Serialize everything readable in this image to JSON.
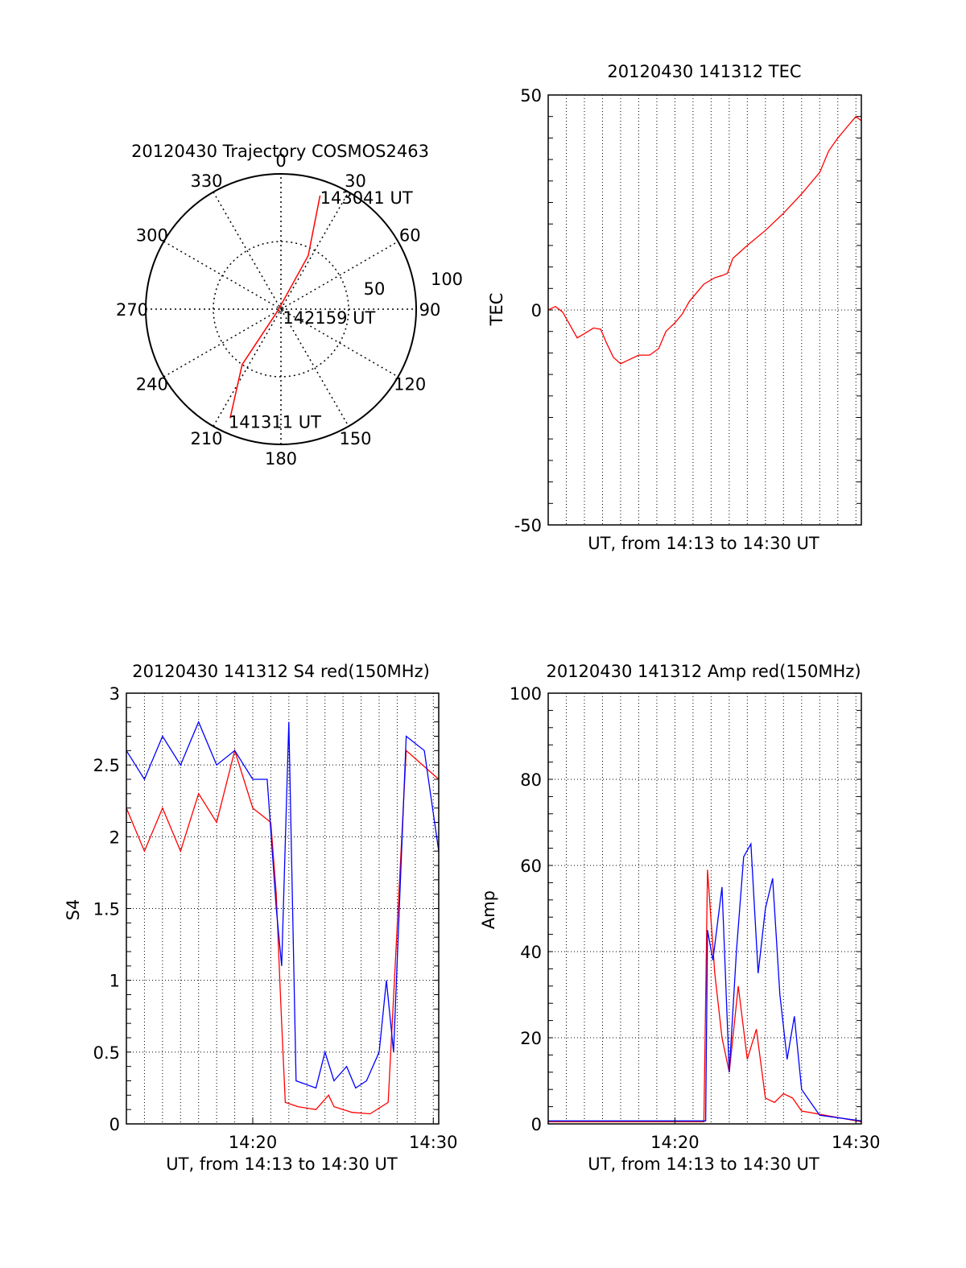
{
  "chart_data": [
    {
      "type": "polar",
      "title": "20120430 Trajectory COSMOS2463",
      "azimuth_ticks": [
        "0",
        "30",
        "60",
        "90",
        "120",
        "150",
        "180",
        "210",
        "240",
        "270",
        "300",
        "330"
      ],
      "radial_ticks": [
        "50",
        "100"
      ],
      "grid": true,
      "series": [
        {
          "color": "#ff0000",
          "points": [
            {
              "az": 205,
              "elev": 10
            },
            {
              "az": 215,
              "elev": 45
            },
            {
              "az": 250,
              "elev": 88
            },
            {
              "az": 27,
              "elev": 50
            },
            {
              "az": 19,
              "elev": 10
            }
          ]
        }
      ],
      "annotations": [
        {
          "text": "143041 UT",
          "az": 19,
          "elev": 10
        },
        {
          "text": "142159 UT",
          "az": 90,
          "elev": 85
        },
        {
          "text": "141311 UT",
          "az": 205,
          "elev": 10
        }
      ]
    },
    {
      "type": "line",
      "title": "20120430 141312 TEC",
      "xlabel": "UT, from 14:13 to 14:30 UT",
      "ylabel": "TEC",
      "xlim": [
        0,
        17.3
      ],
      "ylim": [
        -50,
        50
      ],
      "yticks": [
        "-50",
        "0",
        "50"
      ],
      "grid": true,
      "series": [
        {
          "color": "#ff0000",
          "points": [
            [
              0,
              0
            ],
            [
              0.4,
              0.8
            ],
            [
              0.8,
              -0.5
            ],
            [
              1.2,
              -3.5
            ],
            [
              1.6,
              -6.5
            ],
            [
              2.0,
              -5.5
            ],
            [
              2.5,
              -4.2
            ],
            [
              2.9,
              -4.5
            ],
            [
              3.2,
              -7.5
            ],
            [
              3.6,
              -11
            ],
            [
              4.0,
              -12.5
            ],
            [
              4.5,
              -11.5
            ],
            [
              5.0,
              -10.5
            ],
            [
              5.6,
              -10.5
            ],
            [
              6.1,
              -9
            ],
            [
              6.5,
              -5
            ],
            [
              7.0,
              -3
            ],
            [
              7.4,
              -1
            ],
            [
              7.8,
              2
            ],
            [
              8.2,
              4
            ],
            [
              8.6,
              6
            ],
            [
              9.2,
              7.5
            ],
            [
              9.6,
              8
            ],
            [
              9.9,
              8.5
            ],
            [
              10.2,
              12
            ],
            [
              11.0,
              15
            ],
            [
              12.0,
              18.5
            ],
            [
              13.0,
              22.5
            ],
            [
              14.0,
              27
            ],
            [
              15.0,
              32
            ],
            [
              15.5,
              37
            ],
            [
              16.0,
              40
            ],
            [
              16.5,
              42.5
            ],
            [
              17.0,
              45
            ],
            [
              17.3,
              44
            ]
          ]
        }
      ]
    },
    {
      "type": "line",
      "title": "20120430 141312 S4 red(150MHz)",
      "xlabel": "UT, from 14:13 to 14:30 UT",
      "ylabel": "S4",
      "xlim": [
        0,
        17.3
      ],
      "ylim": [
        0,
        3
      ],
      "xticks": [
        "14:20",
        "14:30"
      ],
      "yticks": [
        "0",
        "0.5",
        "1",
        "1.5",
        "2",
        "2.5",
        "3"
      ],
      "grid": true,
      "series": [
        {
          "color": "#ff0000",
          "points": [
            [
              0,
              2.2
            ],
            [
              1,
              1.9
            ],
            [
              2,
              2.2
            ],
            [
              3,
              1.9
            ],
            [
              4,
              2.3
            ],
            [
              5,
              2.1
            ],
            [
              6,
              2.6
            ],
            [
              7,
              2.2
            ],
            [
              8,
              2.1
            ],
            [
              8.3,
              1.6
            ],
            [
              8.5,
              1.0
            ],
            [
              8.6,
              0.7
            ],
            [
              8.8,
              0.15
            ],
            [
              9.5,
              0.12
            ],
            [
              10.5,
              0.1
            ],
            [
              11.2,
              0.2
            ],
            [
              11.5,
              0.12
            ],
            [
              12.5,
              0.08
            ],
            [
              13.5,
              0.07
            ],
            [
              14.5,
              0.15
            ],
            [
              15.5,
              2.6
            ],
            [
              17.3,
              2.4
            ]
          ]
        },
        {
          "color": "#0000ff",
          "points": [
            [
              0,
              2.6
            ],
            [
              1,
              2.4
            ],
            [
              2,
              2.7
            ],
            [
              3,
              2.5
            ],
            [
              4,
              2.8
            ],
            [
              5,
              2.5
            ],
            [
              6,
              2.6
            ],
            [
              7,
              2.4
            ],
            [
              7.8,
              2.4
            ],
            [
              8.3,
              1.5
            ],
            [
              8.6,
              1.1
            ],
            [
              9.0,
              2.8
            ],
            [
              9.4,
              0.3
            ],
            [
              10.5,
              0.25
            ],
            [
              11.0,
              0.5
            ],
            [
              11.5,
              0.3
            ],
            [
              12.2,
              0.4
            ],
            [
              12.7,
              0.25
            ],
            [
              13.3,
              0.3
            ],
            [
              14.0,
              0.5
            ],
            [
              14.4,
              1.0
            ],
            [
              14.8,
              0.5
            ],
            [
              15.5,
              2.7
            ],
            [
              16.5,
              2.6
            ],
            [
              17.3,
              1.9
            ]
          ]
        }
      ]
    },
    {
      "type": "line",
      "title": "20120430 141312 Amp red(150MHz)",
      "xlabel": "UT, from 14:13 to 14:30 UT",
      "ylabel": "Amp",
      "xlim": [
        0,
        17.3
      ],
      "ylim": [
        0,
        100
      ],
      "xticks": [
        "14:20",
        "14:30"
      ],
      "yticks": [
        "0",
        "20",
        "40",
        "60",
        "80",
        "100"
      ],
      "grid": true,
      "series": [
        {
          "color": "#ff0000",
          "points": [
            [
              0,
              0.5
            ],
            [
              8.6,
              0.5
            ],
            [
              8.8,
              59
            ],
            [
              9.2,
              35
            ],
            [
              9.6,
              20
            ],
            [
              10.0,
              12
            ],
            [
              10.5,
              32
            ],
            [
              11.0,
              15
            ],
            [
              11.5,
              22
            ],
            [
              12.0,
              6
            ],
            [
              12.5,
              5
            ],
            [
              13.0,
              7
            ],
            [
              13.5,
              6
            ],
            [
              14.0,
              3
            ],
            [
              17.3,
              0.5
            ]
          ]
        },
        {
          "color": "#0000ff",
          "points": [
            [
              0,
              0.7
            ],
            [
              8.7,
              0.7
            ],
            [
              8.8,
              45
            ],
            [
              9.1,
              38
            ],
            [
              9.6,
              55
            ],
            [
              10.0,
              12
            ],
            [
              10.4,
              40
            ],
            [
              10.8,
              62
            ],
            [
              11.2,
              65
            ],
            [
              11.6,
              35
            ],
            [
              12.0,
              50
            ],
            [
              12.4,
              57
            ],
            [
              12.8,
              30
            ],
            [
              13.2,
              15
            ],
            [
              13.6,
              25
            ],
            [
              14.0,
              8
            ],
            [
              14.5,
              5
            ],
            [
              15.0,
              2
            ],
            [
              17.3,
              0.7
            ]
          ]
        }
      ]
    }
  ]
}
